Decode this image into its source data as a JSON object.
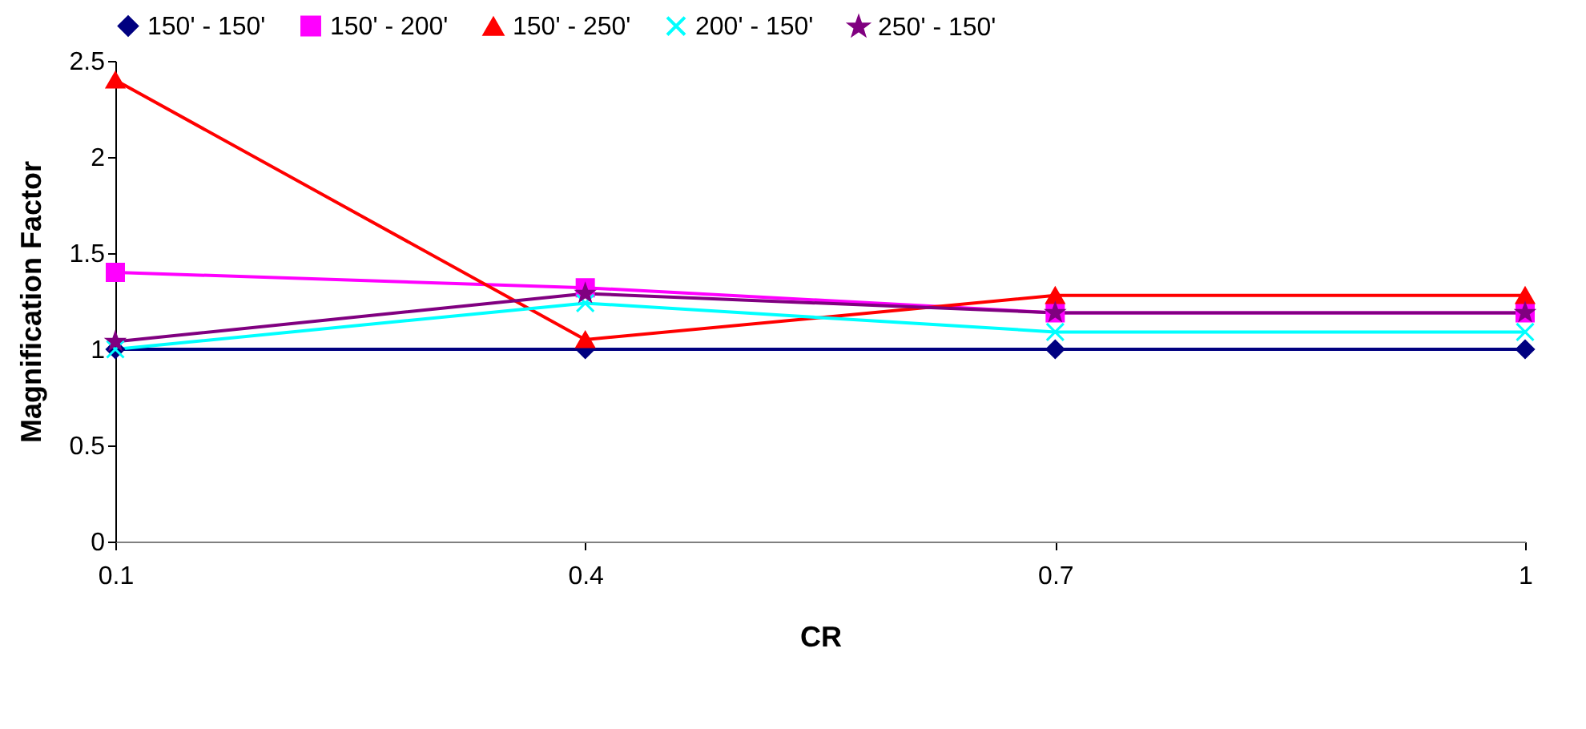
{
  "chart_data": {
    "type": "line",
    "xlabel": "CR",
    "ylabel": "Magnification Factor",
    "x": [
      0.1,
      0.4,
      0.7,
      1
    ],
    "xlim": [
      0.1,
      1
    ],
    "xticks": [
      0.1,
      0.4,
      0.7,
      1
    ],
    "ylim": [
      0,
      2.5
    ],
    "yticks": [
      0,
      0.5,
      1,
      1.5,
      2,
      2.5
    ],
    "grid": false,
    "legend": "top",
    "series": [
      {
        "name": "150' - 150'",
        "color": "#000080",
        "marker": "diamond",
        "values": [
          1,
          1,
          1,
          1
        ]
      },
      {
        "name": "150' - 200'",
        "color": "#ff00ff",
        "marker": "square",
        "values": [
          1.4,
          1.32,
          1.19,
          1.19
        ]
      },
      {
        "name": "150' - 250'",
        "color": "#ff0000",
        "marker": "triangle",
        "values": [
          2.4,
          1.05,
          1.28,
          1.28
        ]
      },
      {
        "name": "200' - 150'",
        "color": "#00ffff",
        "marker": "cross",
        "values": [
          1,
          1.24,
          1.09,
          1.09
        ]
      },
      {
        "name": "250' - 150'",
        "color": "#800080",
        "marker": "star",
        "values": [
          1.04,
          1.29,
          1.19,
          1.19
        ]
      }
    ]
  }
}
